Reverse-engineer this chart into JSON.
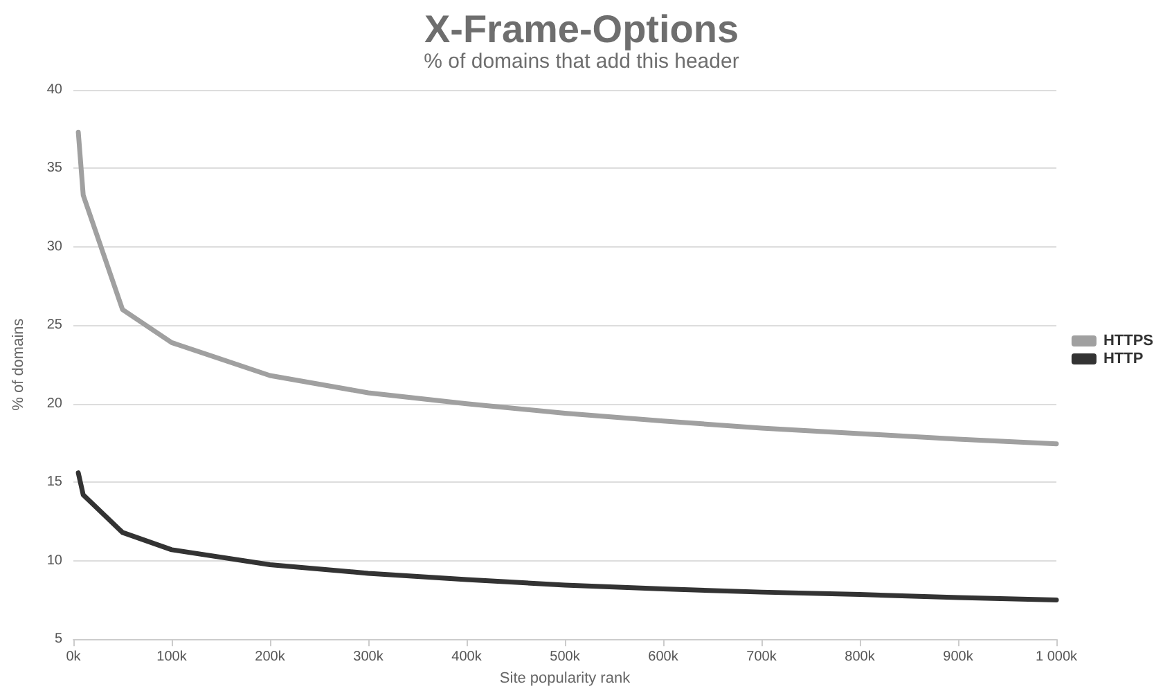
{
  "chart_data": {
    "type": "line",
    "title": "X-Frame-Options",
    "subtitle": "% of domains that add this header",
    "xlabel": "Site popularity rank",
    "ylabel": "% of domains",
    "x": [
      5000,
      10000,
      50000,
      100000,
      200000,
      300000,
      400000,
      500000,
      600000,
      700000,
      800000,
      900000,
      1000000
    ],
    "series": [
      {
        "name": "HTTPS",
        "color": "#a0a0a0",
        "values": [
          37.3,
          33.3,
          26.0,
          23.9,
          21.8,
          20.7,
          20.0,
          19.4,
          18.9,
          18.45,
          18.1,
          17.75,
          17.45
        ]
      },
      {
        "name": "HTTP",
        "color": "#333333",
        "values": [
          15.6,
          14.2,
          11.8,
          10.7,
          9.75,
          9.2,
          8.8,
          8.45,
          8.2,
          8.0,
          7.85,
          7.65,
          7.5
        ]
      }
    ],
    "xlim": [
      0,
      1000000
    ],
    "xticks": [
      {
        "value": 0,
        "label": "0k"
      },
      {
        "value": 100000,
        "label": "100k"
      },
      {
        "value": 200000,
        "label": "200k"
      },
      {
        "value": 300000,
        "label": "300k"
      },
      {
        "value": 400000,
        "label": "400k"
      },
      {
        "value": 500000,
        "label": "500k"
      },
      {
        "value": 600000,
        "label": "600k"
      },
      {
        "value": 700000,
        "label": "700k"
      },
      {
        "value": 800000,
        "label": "800k"
      },
      {
        "value": 900000,
        "label": "900k"
      },
      {
        "value": 1000000,
        "label": "1 000k"
      }
    ],
    "ylim": [
      5,
      40
    ],
    "yticks": [
      5,
      10,
      15,
      20,
      25,
      30,
      35,
      40
    ],
    "grid": "y",
    "legend": "right",
    "marker": "none",
    "line_style": "solid"
  }
}
